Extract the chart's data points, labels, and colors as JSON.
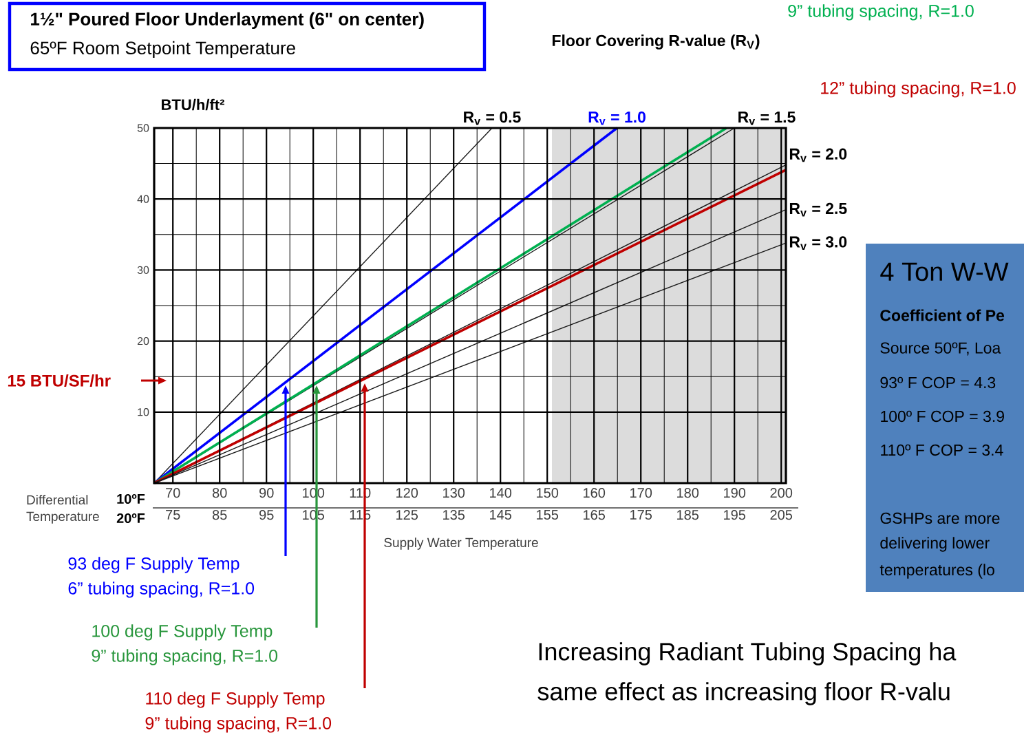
{
  "chart_data": {
    "type": "line",
    "title": "1½\" Poured Floor Underlayment (6\" on center)",
    "subtitle": "65ºF Room Setpoint Temperature",
    "ylabel": "BTU/h/ft²",
    "xlabel": "Supply Water Temperature",
    "xlim": [
      66,
      201
    ],
    "ylim": [
      0,
      50
    ],
    "xticks": [
      70,
      80,
      90,
      100,
      110,
      120,
      130,
      140,
      150,
      160,
      170,
      180,
      190,
      200
    ],
    "yticks": [
      10,
      20,
      30,
      40,
      50
    ],
    "x2lim": [
      71,
      206
    ],
    "x2ticks": [
      75,
      85,
      95,
      105,
      115,
      125,
      135,
      145,
      155,
      165,
      175,
      185,
      195,
      205
    ],
    "grid": true,
    "bands": [
      {
        "axis": "x",
        "from": 151,
        "to": 201,
        "color": "#dcdcdc"
      }
    ],
    "series": [
      {
        "name": "R$_{v}$ = 0.5",
        "color": "#1a1a1a",
        "x": [
          66,
          138.2
        ],
        "values": [
          0,
          50
        ]
      },
      {
        "name": "R$_{v}$ = 1.0",
        "color": "#0000ff",
        "x": [
          66,
          164.9
        ],
        "values": [
          0,
          50
        ]
      },
      {
        "name": "R$_{v}$ = 1.5",
        "color": "#1a1a1a",
        "x": [
          66,
          190
        ],
        "values": [
          0,
          50
        ]
      },
      {
        "name": "9” tubing spacing, R=1.0",
        "color": "#00b050",
        "x": [
          66,
          188.3
        ],
        "values": [
          0,
          50
        ]
      },
      {
        "name": "R$_{v}$ = 2.0",
        "color": "#1a1a1a",
        "x": [
          66,
          201
        ],
        "values": [
          0,
          44.8
        ]
      },
      {
        "name": "12” tubing spacing, R=1.0",
        "color": "#c00000",
        "x": [
          66,
          201
        ],
        "values": [
          0,
          44.1
        ]
      },
      {
        "name": "R$_{v}$ = 2.5",
        "color": "#1a1a1a",
        "x": [
          66,
          201
        ],
        "values": [
          0,
          38.5
        ]
      },
      {
        "name": "R$_{v}$ = 3.0",
        "color": "#1a1a1a",
        "x": [
          66,
          201
        ],
        "values": [
          0,
          33.8
        ]
      }
    ],
    "annotations": [
      "15 BTU/SF/hr",
      "93 deg F Supply Temp",
      "6” tubing spacing, R=1.0",
      "100 deg F Supply Temp",
      "9” tubing spacing, R=1.0",
      "110 deg F Supply Temp",
      "9” tubing spacing, R=1.0",
      "Floor Covering R-value (R$_{V}$)",
      "Differential Temperature",
      "10ºF",
      "20ºF",
      "4 Ton W-W",
      "Coefficient of Pe",
      "Source 50ºF, Loa",
      "93º F   COP = 4.3",
      "100º F COP = 3.9",
      "110º F COP = 3.4",
      "GSHPs are more",
      "delivering lower",
      "temperatures (lo",
      "Increasing Radiant Tubing Spacing ha",
      "same effect as increasing floor R-valu"
    ]
  }
}
